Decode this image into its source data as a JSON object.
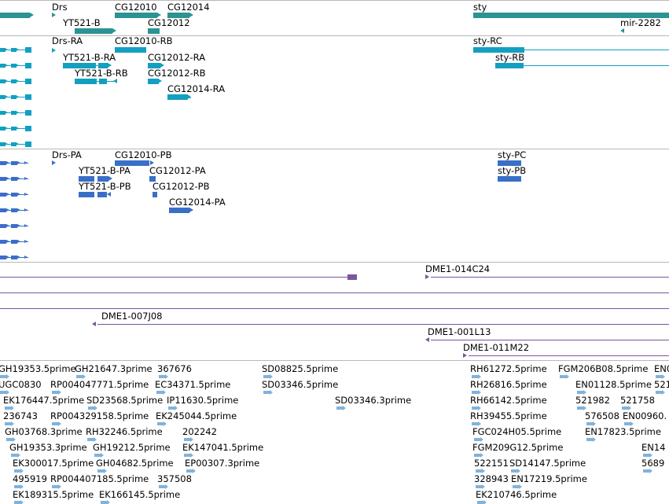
{
  "colors": {
    "gene": "#2c9393",
    "rna": "#13a0c0",
    "protein": "#3a6fc8",
    "clone": "#7a55a0",
    "est": "#7fb3dc",
    "separator": "#b8b8b8",
    "background": "#ffffff"
  },
  "tracks": [
    {
      "name": "genes",
      "labels": [
        "Drs",
        "YT521-B",
        "CG12010",
        "CG12012",
        "CG12014",
        "sty",
        "mir-2282"
      ]
    },
    {
      "name": "transcripts",
      "labels": [
        "Drs-RA",
        "YT521-B-RA",
        "YT521-B-RB",
        "CG12010-RB",
        "CG12012-RA",
        "CG12012-RB",
        "CG12014-RA",
        "sty-RC",
        "sty-RB"
      ]
    },
    {
      "name": "polypeptides",
      "labels": [
        "Drs-PA",
        "YT521-B-PA",
        "YT521-B-PB",
        "CG12010-PB",
        "CG12012-PA",
        "CG12012-PB",
        "CG12014-PA",
        "sty-PC",
        "sty-PB"
      ]
    },
    {
      "name": "bac-clones",
      "labels": [
        "DME1-014C24",
        "DME1-007J08",
        "DME1-001L13",
        "DME1-011M22"
      ]
    },
    {
      "name": "ests",
      "labels": [
        "GH19353.5prime",
        "GH21647.3prime",
        "367676",
        "SD08825.5prime",
        "RH61272.5prime",
        "FGM206B08.5prime",
        "EN0",
        "UGC0830",
        "RP004047771.5prime",
        "EC34371.5prime",
        "SD03346.5prime",
        "RH26816.5prime",
        "EN01128.5prime",
        "521",
        "EK176447.5prime",
        "SD23568.5prime",
        "IP11630.5prime",
        "SD03346.3prime",
        "RH66142.5prime",
        "521982",
        "521758",
        "236743",
        "RP004329158.5prime",
        "EK245044.5prime",
        "RH39455.5prime",
        "576508",
        "EN00960.",
        "GH03768.3prime",
        "RH32246.5prime",
        "202242",
        "FGC024H05.5prime",
        "EN17823.5prime",
        "GH19353.3prime",
        "GH19212.5prime",
        "EK147041.5prime",
        "FGM209G12.5prime",
        "EN14",
        "EK300017.5prime",
        "GH04682.5prime",
        "EP00307.3prime",
        "522151",
        "SD14147.5prime",
        "5689",
        "495919",
        "RP004407185.5prime",
        "357508",
        "328943",
        "EN17219.5prime",
        "EK189315.5prime",
        "EK166145.5prime",
        "EK210746.5prime"
      ]
    }
  ]
}
